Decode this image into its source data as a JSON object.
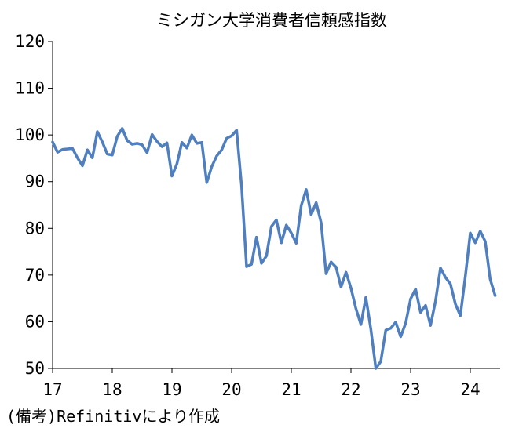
{
  "chart_data": {
    "type": "line",
    "title": "ミシガン大学消費者信頼感指数",
    "xlabel": "",
    "ylabel": "",
    "ylim": [
      50,
      120
    ],
    "xlim": [
      2017.0,
      2024.5
    ],
    "yticks": [
      50,
      60,
      70,
      80,
      90,
      100,
      110,
      120
    ],
    "xticks": [
      "17",
      "18",
      "19",
      "20",
      "21",
      "22",
      "23",
      "24"
    ],
    "grid": false,
    "legend": "none",
    "line_color": "#4f7fbf",
    "x_dates": [
      "2017-01",
      "2017-02",
      "2017-03",
      "2017-04",
      "2017-05",
      "2017-06",
      "2017-07",
      "2017-08",
      "2017-09",
      "2017-10",
      "2017-11",
      "2017-12",
      "2018-01",
      "2018-02",
      "2018-03",
      "2018-04",
      "2018-05",
      "2018-06",
      "2018-07",
      "2018-08",
      "2018-09",
      "2018-10",
      "2018-11",
      "2018-12",
      "2019-01",
      "2019-02",
      "2019-03",
      "2019-04",
      "2019-05",
      "2019-06",
      "2019-07",
      "2019-08",
      "2019-09",
      "2019-10",
      "2019-11",
      "2019-12",
      "2020-01",
      "2020-02",
      "2020-03",
      "2020-04",
      "2020-05",
      "2020-06",
      "2020-07",
      "2020-08",
      "2020-09",
      "2020-10",
      "2020-11",
      "2020-12",
      "2021-01",
      "2021-02",
      "2021-03",
      "2021-04",
      "2021-05",
      "2021-06",
      "2021-07",
      "2021-08",
      "2021-09",
      "2021-10",
      "2021-11",
      "2021-12",
      "2022-01",
      "2022-02",
      "2022-03",
      "2022-04",
      "2022-05",
      "2022-06",
      "2022-07",
      "2022-08",
      "2022-09",
      "2022-10",
      "2022-11",
      "2022-12",
      "2023-01",
      "2023-02",
      "2023-03",
      "2023-04",
      "2023-05",
      "2023-06",
      "2023-07",
      "2023-08",
      "2023-09",
      "2023-10",
      "2023-11",
      "2023-12",
      "2024-01",
      "2024-02",
      "2024-03",
      "2024-04",
      "2024-05",
      "2024-06"
    ],
    "series": [
      {
        "values": [
          98.5,
          96.3,
          96.9,
          97.0,
          97.1,
          95.1,
          93.4,
          96.8,
          95.1,
          100.7,
          98.5,
          95.9,
          95.7,
          99.7,
          101.4,
          98.8,
          98.0,
          98.2,
          97.9,
          96.2,
          100.1,
          98.6,
          97.5,
          98.3,
          91.2,
          93.8,
          98.4,
          97.2,
          100.0,
          98.2,
          98.4,
          89.8,
          93.2,
          95.5,
          96.8,
          99.3,
          99.8,
          101.0,
          89.1,
          71.8,
          72.3,
          78.1,
          72.5,
          74.1,
          80.4,
          81.8,
          76.9,
          80.7,
          79.0,
          76.8,
          84.9,
          88.3,
          82.9,
          85.5,
          81.2,
          70.3,
          72.8,
          71.7,
          67.4,
          70.6,
          67.2,
          62.8,
          59.4,
          65.2,
          58.4,
          50.0,
          51.5,
          58.2,
          58.6,
          59.9,
          56.8,
          59.7,
          64.9,
          67.0,
          62.0,
          63.5,
          59.2,
          64.4,
          71.5,
          69.5,
          68.1,
          63.8,
          61.3,
          69.7,
          79.0,
          76.9,
          79.4,
          77.2,
          69.1,
          65.6
        ]
      }
    ]
  },
  "notes": {
    "source": "(備考)Refinitivにより作成"
  }
}
